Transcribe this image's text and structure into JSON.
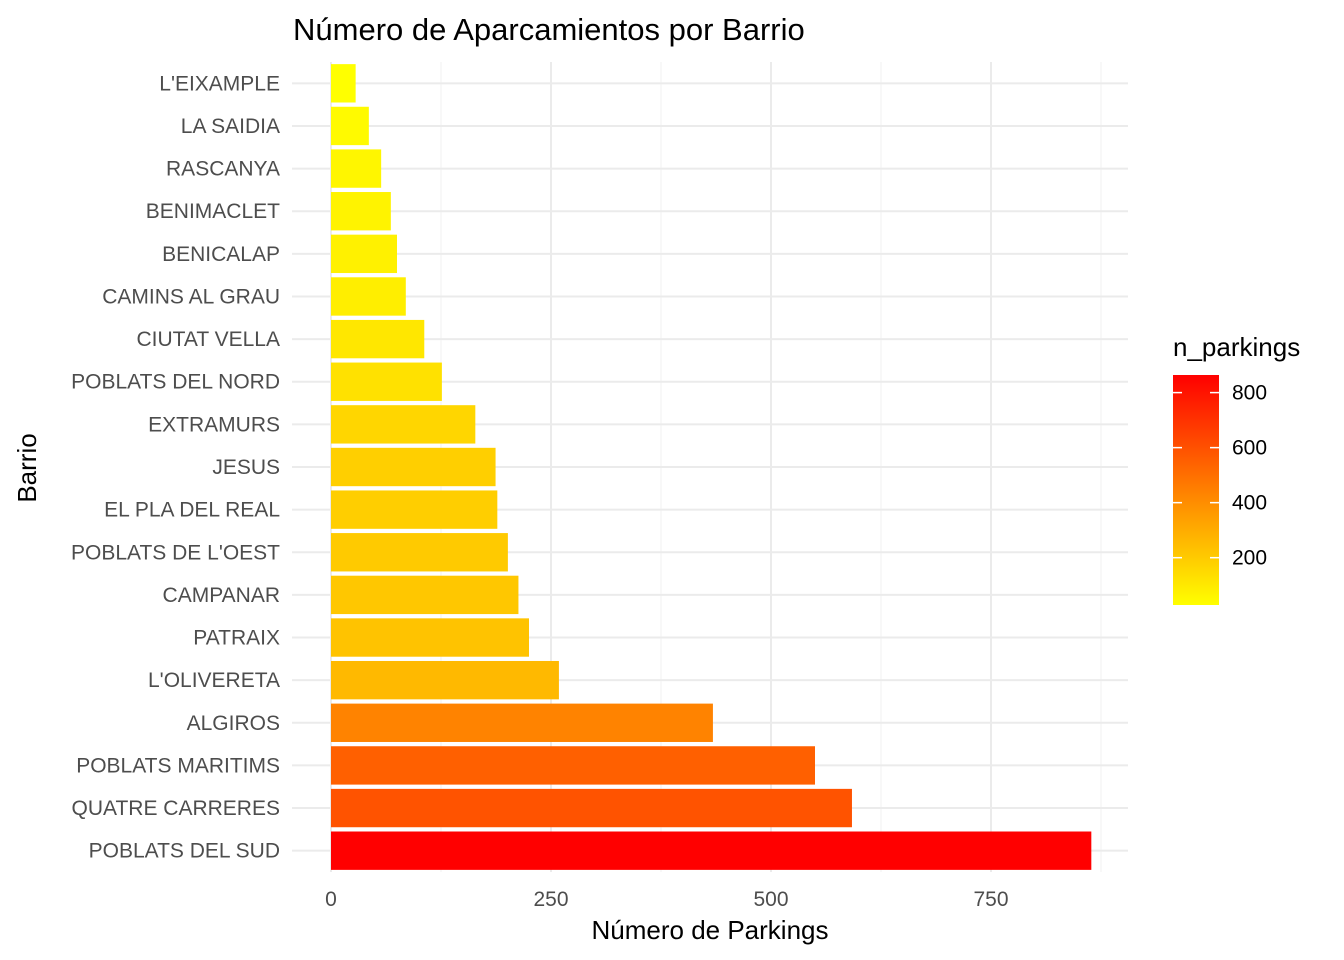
{
  "chart_data": {
    "type": "bar",
    "orientation": "horizontal",
    "title": "Número de Aparcamientos por Barrio",
    "xlabel": "Número de Parkings",
    "ylabel": "Barrio",
    "categories": [
      "L'EIXAMPLE",
      "LA SAIDIA",
      "RASCANYA",
      "BENIMACLET",
      "BENICALAP",
      "CAMINS AL GRAU",
      "CIUTAT VELLA",
      "POBLATS DEL NORD",
      "EXTRAMURS",
      "JESUS",
      "EL PLA DEL REAL",
      "POBLATS DE L'OEST",
      "CAMPANAR",
      "PATRAIX",
      "L'OLIVERETA",
      "ALGIROS",
      "POBLATS MARITIMS",
      "QUATRE CARRERES",
      "POBLATS DEL SUD"
    ],
    "values": [
      28,
      43,
      57,
      68,
      75,
      85,
      106,
      126,
      164,
      187,
      189,
      201,
      213,
      225,
      259,
      434,
      550,
      592,
      864
    ],
    "xlim": [
      0,
      910
    ],
    "xticks": [
      "0",
      "250",
      "500",
      "750"
    ],
    "xtick_values": [
      0,
      250,
      500,
      750
    ],
    "grid": true,
    "legend": {
      "title": "n_parkings",
      "placement": "right",
      "labels": [
        "800",
        "600",
        "400",
        "200"
      ],
      "label_values": [
        800,
        600,
        400,
        200
      ],
      "range": [
        28,
        864
      ],
      "low_color": "#ffff00",
      "high_color": "#ff0000"
    }
  }
}
